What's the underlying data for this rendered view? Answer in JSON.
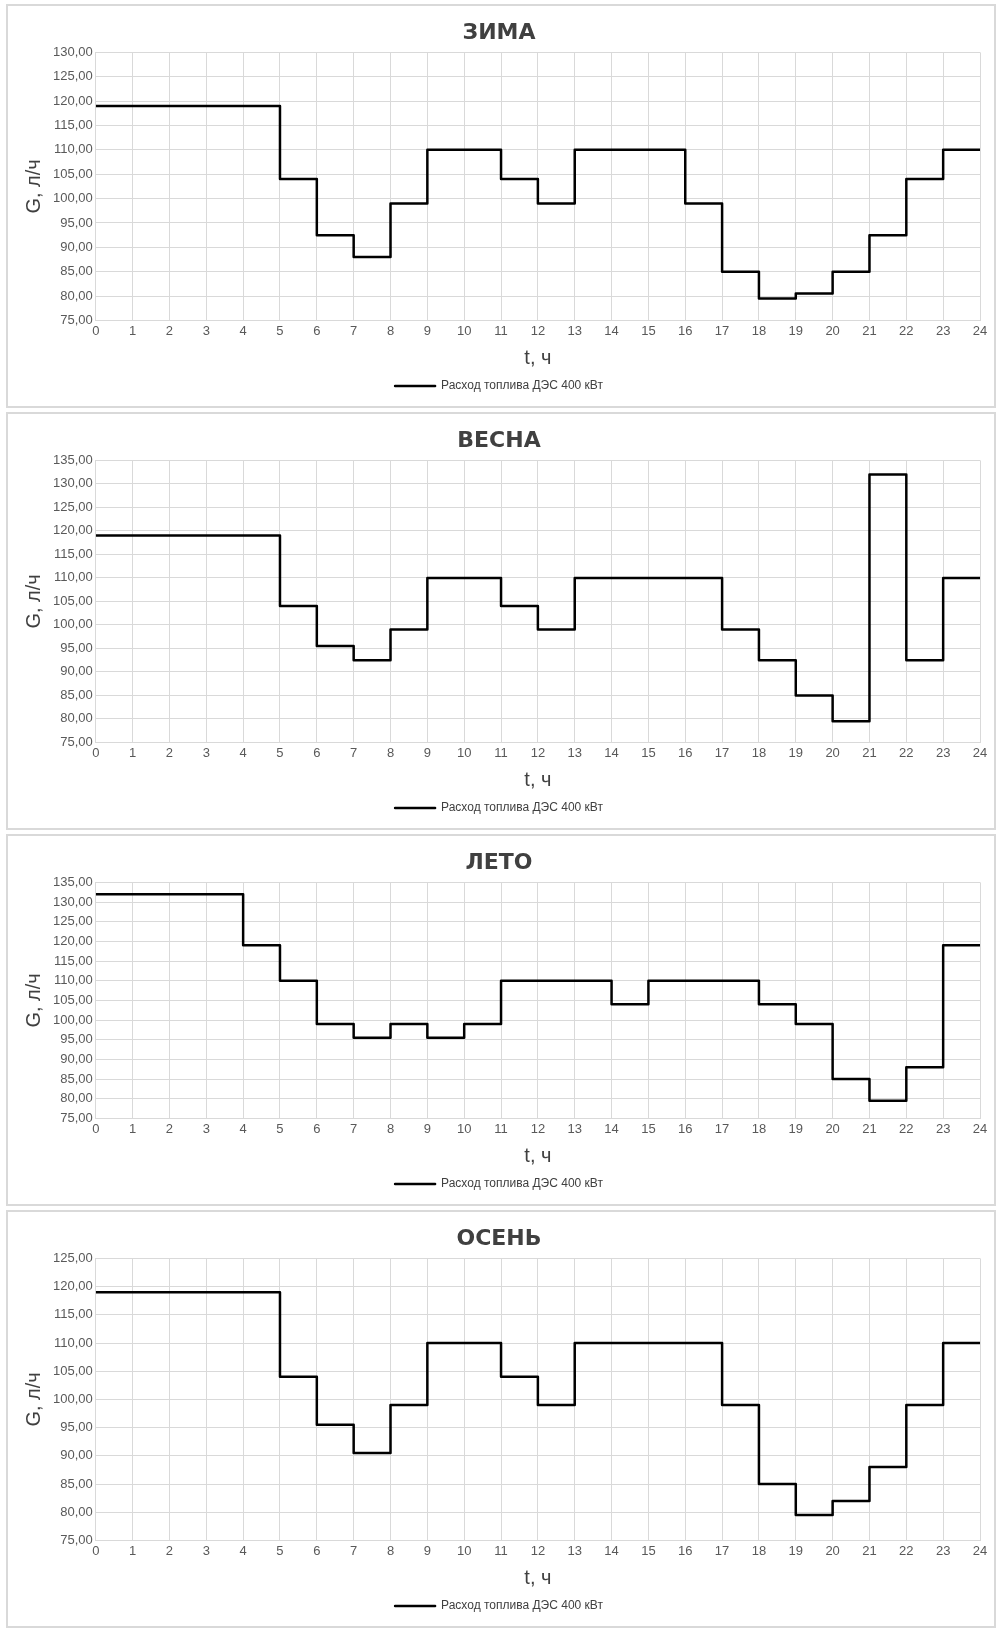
{
  "chart_data": [
    {
      "type": "step",
      "title": "ЗИМА",
      "xlabel": "t, ч",
      "ylabel": "G, л/ч",
      "legend": "bottom",
      "grid": true,
      "x": [
        0,
        1,
        2,
        3,
        4,
        5,
        6,
        7,
        8,
        9,
        10,
        11,
        12,
        13,
        14,
        15,
        16,
        17,
        18,
        19,
        20,
        21,
        22,
        23,
        24
      ],
      "series": [
        {
          "name": "Расход топлива ДЭС 400 кВт",
          "color": "#000000",
          "values": [
            119,
            119,
            119,
            119,
            119,
            104,
            92.5,
            88,
            99,
            110,
            110,
            104,
            99,
            110,
            110,
            110,
            99,
            85,
            79.5,
            80.5,
            85,
            92.5,
            104,
            110,
            110
          ]
        }
      ],
      "xlim": [
        0,
        24
      ],
      "xticks": [
        0,
        1,
        2,
        3,
        4,
        5,
        6,
        7,
        8,
        9,
        10,
        11,
        12,
        13,
        14,
        15,
        16,
        17,
        18,
        19,
        20,
        21,
        22,
        23,
        24
      ],
      "ylim": [
        75,
        130
      ],
      "yticks": [
        {
          "value": 75,
          "label": "75,00"
        },
        {
          "value": 80,
          "label": "80,00"
        },
        {
          "value": 85,
          "label": "85,00"
        },
        {
          "value": 90,
          "label": "90,00"
        },
        {
          "value": 95,
          "label": "95,00"
        },
        {
          "value": 100,
          "label": "100,00"
        },
        {
          "value": 105,
          "label": "105,00"
        },
        {
          "value": 110,
          "label": "110,00"
        },
        {
          "value": 115,
          "label": "115,00"
        },
        {
          "value": 120,
          "label": "120,00"
        },
        {
          "value": 125,
          "label": "125,00"
        },
        {
          "value": 130,
          "label": "130,00"
        }
      ]
    },
    {
      "type": "step",
      "title": "ВЕСНА",
      "xlabel": "t, ч",
      "ylabel": "G, л/ч",
      "legend": "bottom",
      "grid": true,
      "x": [
        0,
        1,
        2,
        3,
        4,
        5,
        6,
        7,
        8,
        9,
        10,
        11,
        12,
        13,
        14,
        15,
        16,
        17,
        18,
        19,
        20,
        21,
        22,
        23,
        24
      ],
      "series": [
        {
          "name": "Расход топлива ДЭС 400 кВт",
          "color": "#000000",
          "values": [
            119,
            119,
            119,
            119,
            119,
            104,
            95.5,
            92.5,
            99,
            110,
            110,
            104,
            99,
            110,
            110,
            110,
            110,
            99,
            92.5,
            85,
            79.5,
            132,
            92.5,
            110,
            110
          ]
        }
      ],
      "xlim": [
        0,
        24
      ],
      "xticks": [
        0,
        1,
        2,
        3,
        4,
        5,
        6,
        7,
        8,
        9,
        10,
        11,
        12,
        13,
        14,
        15,
        16,
        17,
        18,
        19,
        20,
        21,
        22,
        23,
        24
      ],
      "ylim": [
        75,
        135
      ],
      "yticks": [
        {
          "value": 75,
          "label": "75,00"
        },
        {
          "value": 80,
          "label": "80,00"
        },
        {
          "value": 85,
          "label": "85,00"
        },
        {
          "value": 90,
          "label": "90,00"
        },
        {
          "value": 95,
          "label": "95,00"
        },
        {
          "value": 100,
          "label": "100,00"
        },
        {
          "value": 105,
          "label": "105,00"
        },
        {
          "value": 110,
          "label": "110,00"
        },
        {
          "value": 115,
          "label": "115,00"
        },
        {
          "value": 120,
          "label": "120,00"
        },
        {
          "value": 125,
          "label": "125,00"
        },
        {
          "value": 130,
          "label": "130,00"
        },
        {
          "value": 135,
          "label": "135,00"
        }
      ]
    },
    {
      "type": "step",
      "title": "ЛЕТО",
      "xlabel": "t, ч",
      "ylabel": "G, л/ч",
      "legend": "bottom",
      "grid": true,
      "x": [
        0,
        1,
        2,
        3,
        4,
        5,
        6,
        7,
        8,
        9,
        10,
        11,
        12,
        13,
        14,
        15,
        16,
        17,
        18,
        19,
        20,
        21,
        22,
        23,
        24
      ],
      "series": [
        {
          "name": "Расход топлива ДЭС 400 кВт",
          "color": "#000000",
          "values": [
            132,
            132,
            132,
            132,
            119,
            110,
            99,
            95.5,
            99,
            95.5,
            99,
            110,
            110,
            110,
            104,
            110,
            110,
            110,
            104,
            99,
            85,
            79.5,
            88,
            119,
            119
          ]
        }
      ],
      "xlim": [
        0,
        24
      ],
      "xticks": [
        0,
        1,
        2,
        3,
        4,
        5,
        6,
        7,
        8,
        9,
        10,
        11,
        12,
        13,
        14,
        15,
        16,
        17,
        18,
        19,
        20,
        21,
        22,
        23,
        24
      ],
      "ylim": [
        75,
        135
      ],
      "yticks": [
        {
          "value": 75,
          "label": "75,00"
        },
        {
          "value": 80,
          "label": "80,00"
        },
        {
          "value": 85,
          "label": "85,00"
        },
        {
          "value": 90,
          "label": "90,00"
        },
        {
          "value": 95,
          "label": "95,00"
        },
        {
          "value": 100,
          "label": "100,00"
        },
        {
          "value": 105,
          "label": "105,00"
        },
        {
          "value": 110,
          "label": "110,00"
        },
        {
          "value": 115,
          "label": "115,00"
        },
        {
          "value": 120,
          "label": "120,00"
        },
        {
          "value": 125,
          "label": "125,00"
        },
        {
          "value": 130,
          "label": "130,00"
        },
        {
          "value": 135,
          "label": "135,00"
        }
      ]
    },
    {
      "type": "step",
      "title": "ОСЕНЬ",
      "xlabel": "t, ч",
      "ylabel": "G, л/ч",
      "legend": "bottom",
      "grid": true,
      "x": [
        0,
        1,
        2,
        3,
        4,
        5,
        6,
        7,
        8,
        9,
        10,
        11,
        12,
        13,
        14,
        15,
        16,
        17,
        18,
        19,
        20,
        21,
        22,
        23,
        24
      ],
      "series": [
        {
          "name": "Расход топлива ДЭС 400 кВт",
          "color": "#000000",
          "values": [
            119,
            119,
            119,
            119,
            119,
            104,
            95.5,
            90.5,
            99,
            110,
            110,
            104,
            99,
            110,
            110,
            110,
            110,
            99,
            85,
            79.5,
            82,
            88,
            99,
            110,
            110
          ]
        }
      ],
      "xlim": [
        0,
        24
      ],
      "xticks": [
        0,
        1,
        2,
        3,
        4,
        5,
        6,
        7,
        8,
        9,
        10,
        11,
        12,
        13,
        14,
        15,
        16,
        17,
        18,
        19,
        20,
        21,
        22,
        23,
        24
      ],
      "ylim": [
        75,
        125
      ],
      "yticks": [
        {
          "value": 75,
          "label": "75,00"
        },
        {
          "value": 80,
          "label": "80,00"
        },
        {
          "value": 85,
          "label": "85,00"
        },
        {
          "value": 90,
          "label": "90,00"
        },
        {
          "value": 95,
          "label": "95,00"
        },
        {
          "value": 100,
          "label": "100,00"
        },
        {
          "value": 105,
          "label": "105,00"
        },
        {
          "value": 110,
          "label": "110,00"
        },
        {
          "value": 115,
          "label": "115,00"
        },
        {
          "value": 120,
          "label": "120,00"
        },
        {
          "value": 125,
          "label": "125,00"
        }
      ]
    }
  ]
}
